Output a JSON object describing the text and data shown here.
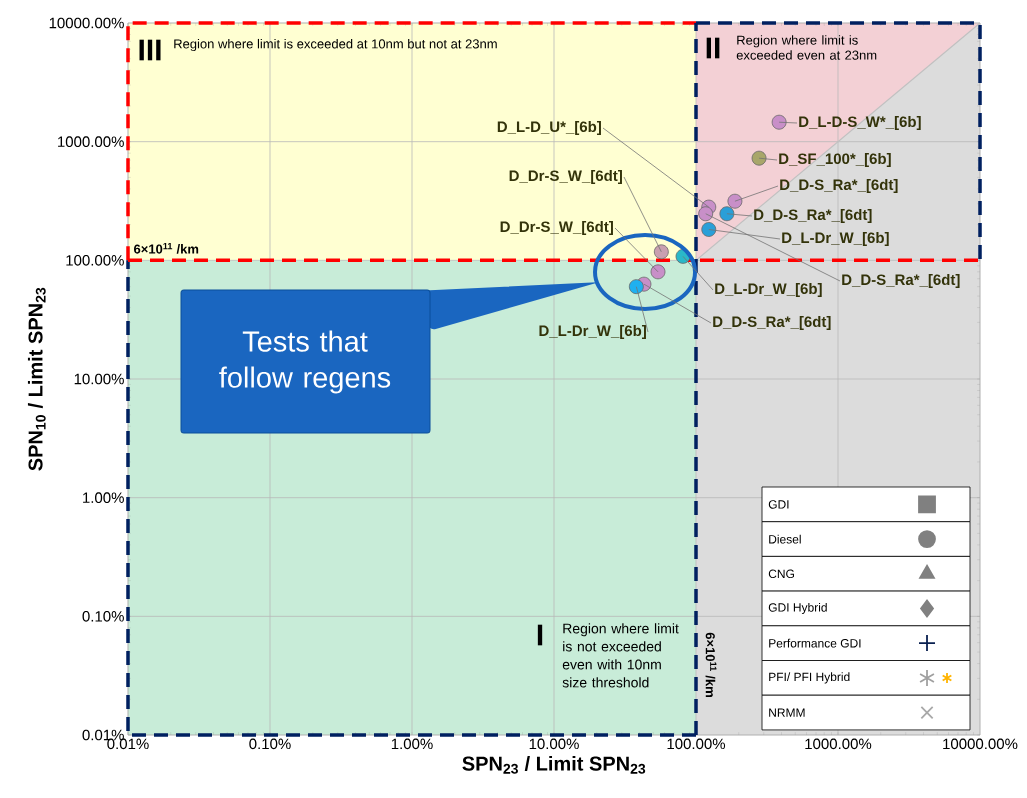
{
  "chart_data": {
    "type": "scatter",
    "xlabel": "SPN$_{23}$ / Limit SPN$_{23}$",
    "ylabel": "SPN$_{10}$ / Limit SPN$_{23}$",
    "log": "xy",
    "grid": true,
    "xlim": [
      0.01,
      10000
    ],
    "ylim": [
      0.01,
      10000
    ],
    "xticks": [
      {
        "value": 0.01,
        "label": "0.01%"
      },
      {
        "value": 0.1,
        "label": "0.10%"
      },
      {
        "value": 1,
        "label": "1.00%"
      },
      {
        "value": 10,
        "label": "10.00%"
      },
      {
        "value": 100,
        "label": "100.00%"
      },
      {
        "value": 1000,
        "label": "1000.00%"
      },
      {
        "value": 10000,
        "label": "10000.00%"
      }
    ],
    "yticks": [
      {
        "value": 0.01,
        "label": "0.01%"
      },
      {
        "value": 0.1,
        "label": "0.10%"
      },
      {
        "value": 1,
        "label": "1.00%"
      },
      {
        "value": 10,
        "label": "10.00%"
      },
      {
        "value": 100,
        "label": "100.00%"
      },
      {
        "value": 1000,
        "label": "1000.00%"
      },
      {
        "value": 10000,
        "label": "10000.00%"
      }
    ],
    "series": [
      {
        "marker": "circle",
        "x": [
          385,
          278,
          188,
          123,
          117,
          165,
          123,
          57,
          81,
          54,
          43,
          38
        ],
        "values": [
          1459,
          726,
          315,
          281,
          247,
          247,
          182,
          118,
          108,
          80,
          63,
          60
        ],
        "colors": [
          "#c88fc8",
          "#a8a66a",
          "#c88fc8",
          "#c88fc8",
          "#c88fc8",
          "#2a9fd8",
          "#2a9fd8",
          "#c9a0b0",
          "#2ab8c8",
          "#c88fc8",
          "#c88fc8",
          "#1fb0f0"
        ]
      },
      {
        "type": "line",
        "color": "#c0c0c0",
        "x": [
          100,
          10000
        ],
        "values": [
          100,
          10000
        ]
      }
    ],
    "ref_lines": [
      {
        "axis": "y",
        "value": 100,
        "label": "6×10$^{11}$ /km",
        "color": "#ff0000",
        "line_style": "dashed"
      },
      {
        "axis": "x",
        "value": 100,
        "label": "6×10$^{11}$ /km",
        "color": "#002060",
        "line_style": "dashed"
      }
    ],
    "annotations": [
      {
        "text": "D_L-D-S_W*_[6b]",
        "x": 385,
        "y": 1459
      },
      {
        "text": "D_SF_100*_[6b]",
        "x": 278,
        "y": 726
      },
      {
        "text": "D_D-S_Ra*_[6dt]",
        "x": 188,
        "y": 315
      },
      {
        "text": "D_D-S_Ra*_[6dt]",
        "x": 165,
        "y": 247
      },
      {
        "text": "D_L-Dr_W_[6b]",
        "x": 123,
        "y": 182
      },
      {
        "text": "D_D-S_Ra*_[6dt]",
        "x": 117,
        "y": 247
      },
      {
        "text": "D_L-D_U*_[6b]",
        "x": 123,
        "y": 281
      },
      {
        "text": "D_Dr-S_W_[6dt]",
        "x": 57,
        "y": 118
      },
      {
        "text": "D_Dr-S_W_[6dt]",
        "x": 54,
        "y": 80
      },
      {
        "text": "D_L-Dr_W_[6b]",
        "x": 81,
        "y": 108
      },
      {
        "text": "D_D-S_Ra*_[6dt]",
        "x": 43,
        "y": 63
      },
      {
        "text": "D_L-Dr_W_[6b]",
        "x": 38,
        "y": 60
      },
      "III",
      "Region where limit is exceeded at 10nm but not at 23nm",
      "II",
      "Region where limit is exceeded even at 23nm",
      "I",
      "Region where limit is not exceeded even with 10nm size threshold",
      "Tests that follow regens",
      "GDI",
      "Diesel",
      "CNG",
      "GDI Hybrid",
      "Performance GDI",
      "PFI/ PFI Hybrid",
      "NRMM"
    ]
  }
}
